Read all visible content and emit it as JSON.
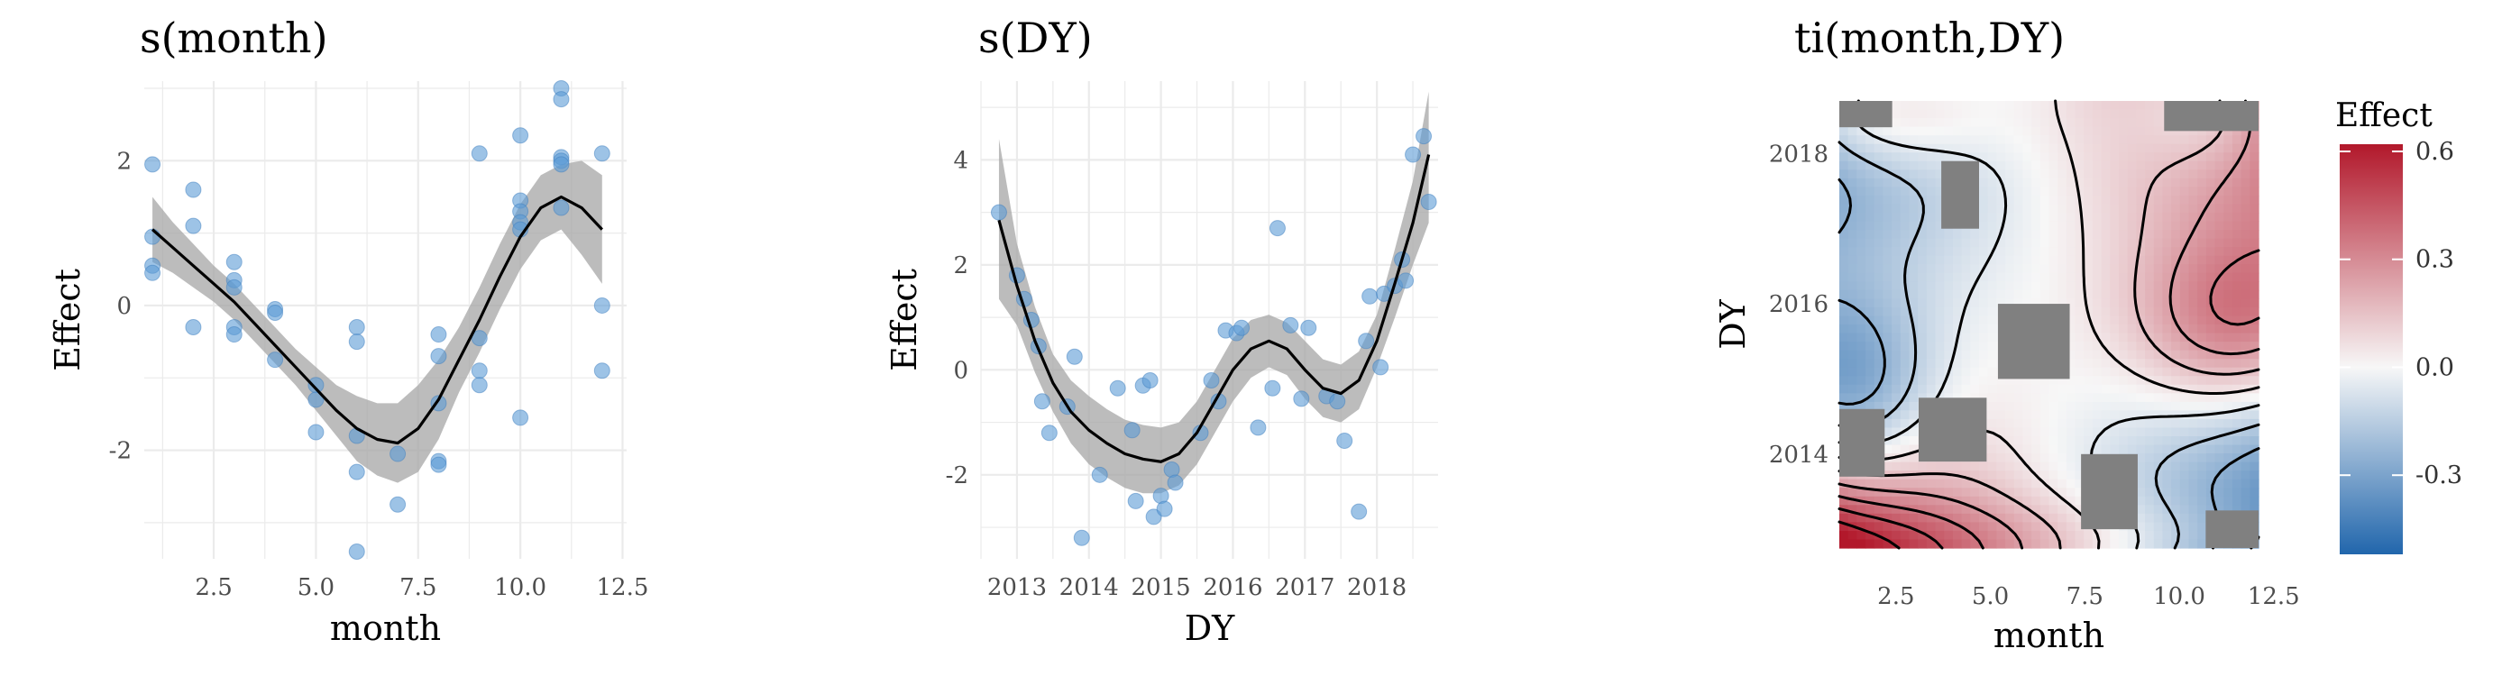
{
  "chart_data": [
    {
      "type": "scatter",
      "title": "s(month)",
      "xlabel": "month",
      "ylabel": "Effect",
      "xlim": [
        0.8,
        12.6
      ],
      "ylim": [
        -3.5,
        3.1
      ],
      "xticks": [
        2.5,
        5.0,
        7.5,
        10.0,
        12.5
      ],
      "xtick_labels": [
        "2.5",
        "5.0",
        "7.5",
        "10.0",
        "12.5"
      ],
      "yticks": [
        -2,
        0,
        2
      ],
      "ytick_labels": [
        "-2",
        "0",
        "2"
      ],
      "grid": true,
      "colors": {
        "points": "#5b9bd5",
        "line": "#000000",
        "band": "#a6a6a6"
      },
      "points": [
        [
          1,
          1.95
        ],
        [
          1,
          0.95
        ],
        [
          1,
          0.55
        ],
        [
          1,
          0.45
        ],
        [
          2,
          1.6
        ],
        [
          2,
          1.1
        ],
        [
          2,
          -0.3
        ],
        [
          3,
          0.6
        ],
        [
          3,
          0.35
        ],
        [
          3,
          0.25
        ],
        [
          3,
          -0.3
        ],
        [
          3,
          -0.4
        ],
        [
          4,
          -0.05
        ],
        [
          4,
          -0.1
        ],
        [
          4,
          -0.75
        ],
        [
          5,
          -1.1
        ],
        [
          5,
          -1.3
        ],
        [
          5,
          -1.75
        ],
        [
          6,
          -0.3
        ],
        [
          6,
          -0.5
        ],
        [
          6,
          -1.8
        ],
        [
          6,
          -2.3
        ],
        [
          6,
          -3.4
        ],
        [
          7,
          -2.05
        ],
        [
          7,
          -2.75
        ],
        [
          8,
          -0.4
        ],
        [
          8,
          -0.7
        ],
        [
          8,
          -1.35
        ],
        [
          8,
          -2.15
        ],
        [
          8,
          -2.2
        ],
        [
          9,
          2.1
        ],
        [
          9,
          -0.45
        ],
        [
          9,
          -0.9
        ],
        [
          9,
          -1.1
        ],
        [
          10,
          2.35
        ],
        [
          10,
          1.45
        ],
        [
          10,
          1.3
        ],
        [
          10,
          1.15
        ],
        [
          10,
          1.05
        ],
        [
          10,
          -1.55
        ],
        [
          11,
          3.0
        ],
        [
          11,
          2.85
        ],
        [
          11,
          2.05
        ],
        [
          11,
          2.0
        ],
        [
          11,
          1.95
        ],
        [
          11,
          1.35
        ],
        [
          12,
          2.1
        ],
        [
          12,
          0.0
        ],
        [
          12,
          -0.9
        ]
      ],
      "smooth": {
        "x": [
          1,
          1.5,
          2,
          2.5,
          3,
          3.5,
          4,
          4.5,
          5,
          5.5,
          6,
          6.5,
          7,
          7.5,
          8,
          8.5,
          9,
          9.5,
          10,
          10.5,
          11,
          11.5,
          12
        ],
        "y": [
          1.05,
          0.8,
          0.55,
          0.3,
          0.05,
          -0.25,
          -0.55,
          -0.85,
          -1.15,
          -1.45,
          -1.7,
          -1.85,
          -1.9,
          -1.7,
          -1.3,
          -0.75,
          -0.2,
          0.4,
          0.95,
          1.35,
          1.5,
          1.35,
          1.05
        ],
        "lower": [
          0.6,
          0.45,
          0.25,
          0.05,
          -0.2,
          -0.5,
          -0.8,
          -1.1,
          -1.45,
          -1.8,
          -2.15,
          -2.35,
          -2.45,
          -2.3,
          -1.85,
          -1.2,
          -0.65,
          -0.05,
          0.5,
          0.9,
          1.05,
          0.7,
          0.3
        ],
        "upper": [
          1.5,
          1.15,
          0.85,
          0.55,
          0.3,
          0.0,
          -0.3,
          -0.6,
          -0.85,
          -1.1,
          -1.25,
          -1.35,
          -1.35,
          -1.1,
          -0.75,
          -0.3,
          0.25,
          0.85,
          1.4,
          1.8,
          1.95,
          2.0,
          1.8
        ]
      }
    },
    {
      "type": "scatter",
      "title": "s(DY)",
      "xlabel": "DY",
      "ylabel": "Effect",
      "xlim": [
        2012.5,
        2018.85
      ],
      "ylim": [
        -3.6,
        5.5
      ],
      "xticks": [
        2013,
        2014,
        2015,
        2016,
        2017,
        2018
      ],
      "xtick_labels": [
        "2013",
        "2014",
        "2015",
        "2016",
        "2017",
        "2018"
      ],
      "yticks": [
        -2,
        0,
        2,
        4
      ],
      "ytick_labels": [
        "-2",
        "0",
        "2",
        "4"
      ],
      "grid": true,
      "colors": {
        "points": "#5b9bd5",
        "line": "#000000",
        "band": "#a6a6a6"
      },
      "points": [
        [
          2012.75,
          3.0
        ],
        [
          2013.0,
          1.8
        ],
        [
          2013.1,
          1.35
        ],
        [
          2013.2,
          0.95
        ],
        [
          2013.3,
          0.45
        ],
        [
          2013.35,
          -0.6
        ],
        [
          2013.45,
          -1.2
        ],
        [
          2013.7,
          -0.7
        ],
        [
          2013.8,
          0.25
        ],
        [
          2013.9,
          -3.2
        ],
        [
          2014.15,
          -2.0
        ],
        [
          2014.4,
          -0.35
        ],
        [
          2014.6,
          -1.15
        ],
        [
          2014.65,
          -2.5
        ],
        [
          2014.75,
          -0.3
        ],
        [
          2014.85,
          -0.2
        ],
        [
          2014.9,
          -2.8
        ],
        [
          2015.0,
          -2.4
        ],
        [
          2015.05,
          -2.65
        ],
        [
          2015.15,
          -1.9
        ],
        [
          2015.2,
          -2.15
        ],
        [
          2015.55,
          -1.2
        ],
        [
          2015.7,
          -0.2
        ],
        [
          2015.8,
          -0.6
        ],
        [
          2015.9,
          0.75
        ],
        [
          2016.05,
          0.7
        ],
        [
          2016.12,
          0.8
        ],
        [
          2016.35,
          -1.1
        ],
        [
          2016.55,
          -0.35
        ],
        [
          2016.62,
          2.7
        ],
        [
          2016.8,
          0.85
        ],
        [
          2016.95,
          -0.55
        ],
        [
          2017.05,
          0.8
        ],
        [
          2017.3,
          -0.5
        ],
        [
          2017.45,
          -0.6
        ],
        [
          2017.55,
          -1.35
        ],
        [
          2017.75,
          -2.7
        ],
        [
          2017.85,
          0.55
        ],
        [
          2017.9,
          1.4
        ],
        [
          2018.05,
          0.05
        ],
        [
          2018.1,
          1.45
        ],
        [
          2018.25,
          1.6
        ],
        [
          2018.35,
          2.1
        ],
        [
          2018.4,
          1.7
        ],
        [
          2018.5,
          4.1
        ],
        [
          2018.65,
          4.45
        ],
        [
          2018.72,
          3.2
        ]
      ],
      "smooth": {
        "x": [
          2012.75,
          2013.0,
          2013.25,
          2013.5,
          2013.75,
          2014.0,
          2014.25,
          2014.5,
          2014.75,
          2015.0,
          2015.25,
          2015.5,
          2015.75,
          2016.0,
          2016.25,
          2016.5,
          2016.75,
          2017.0,
          2017.25,
          2017.5,
          2017.75,
          2018.0,
          2018.25,
          2018.5,
          2018.72
        ],
        "y": [
          2.85,
          1.6,
          0.55,
          -0.25,
          -0.8,
          -1.15,
          -1.4,
          -1.6,
          -1.7,
          -1.75,
          -1.6,
          -1.2,
          -0.6,
          0.0,
          0.4,
          0.55,
          0.4,
          0.0,
          -0.35,
          -0.45,
          -0.2,
          0.55,
          1.65,
          2.8,
          4.1
        ],
        "lower": [
          1.35,
          0.85,
          -0.05,
          -0.8,
          -1.4,
          -1.8,
          -2.05,
          -2.25,
          -2.35,
          -2.35,
          -2.2,
          -1.8,
          -1.2,
          -0.6,
          -0.15,
          0.05,
          -0.1,
          -0.55,
          -0.9,
          -1.0,
          -0.75,
          0.05,
          1.0,
          2.0,
          2.8
        ],
        "upper": [
          4.4,
          2.4,
          1.2,
          0.3,
          -0.2,
          -0.5,
          -0.75,
          -0.95,
          -1.05,
          -1.1,
          -1.0,
          -0.6,
          0.0,
          0.6,
          0.95,
          1.05,
          0.9,
          0.55,
          0.2,
          0.1,
          0.35,
          1.05,
          2.3,
          3.6,
          5.3
        ]
      }
    },
    {
      "type": "heatmap",
      "title": "ti(month,DY)",
      "xlabel": "month",
      "ylabel": "DY",
      "xlim": [
        1,
        12.1
      ],
      "ylim": [
        2012.75,
        2018.7
      ],
      "xticks": [
        2.5,
        5.0,
        7.5,
        10.0,
        12.5
      ],
      "xtick_labels": [
        "2.5",
        "5.0",
        "7.5",
        "10.0",
        "12.5"
      ],
      "yticks": [
        2014,
        2016,
        2018
      ],
      "ytick_labels": [
        "2014",
        "2016",
        "2018"
      ],
      "legend": {
        "title": "Effect",
        "range": [
          -0.52,
          0.62
        ],
        "ticks": [
          -0.3,
          0.0,
          0.3,
          0.6
        ],
        "tick_labels": [
          "-0.3",
          "0.0",
          "0.3",
          "0.6"
        ],
        "placement": "right"
      },
      "colors": {
        "low": "#2166ac",
        "mid": "#f7f7f7",
        "high": "#b2182b",
        "missing": "#808080",
        "contour": "#000000"
      },
      "missing_regions": [
        {
          "x": [
            1,
            2.4
          ],
          "y": [
            2018.35,
            2018.7
          ]
        },
        {
          "x": [
            3.7,
            4.7
          ],
          "y": [
            2017.0,
            2017.9
          ]
        },
        {
          "x": [
            5.2,
            7.1
          ],
          "y": [
            2015.0,
            2016.0
          ]
        },
        {
          "x": [
            3.1,
            4.9
          ],
          "y": [
            2013.9,
            2014.75
          ]
        },
        {
          "x": [
            1,
            2.2
          ],
          "y": [
            2013.7,
            2014.6
          ]
        },
        {
          "x": [
            7.4,
            8.9
          ],
          "y": [
            2013.0,
            2014.0
          ]
        },
        {
          "x": [
            10.7,
            12.1
          ],
          "y": [
            2012.75,
            2013.25
          ]
        },
        {
          "x": [
            9.6,
            12.1
          ],
          "y": [
            2018.3,
            2018.7
          ]
        }
      ]
    }
  ]
}
